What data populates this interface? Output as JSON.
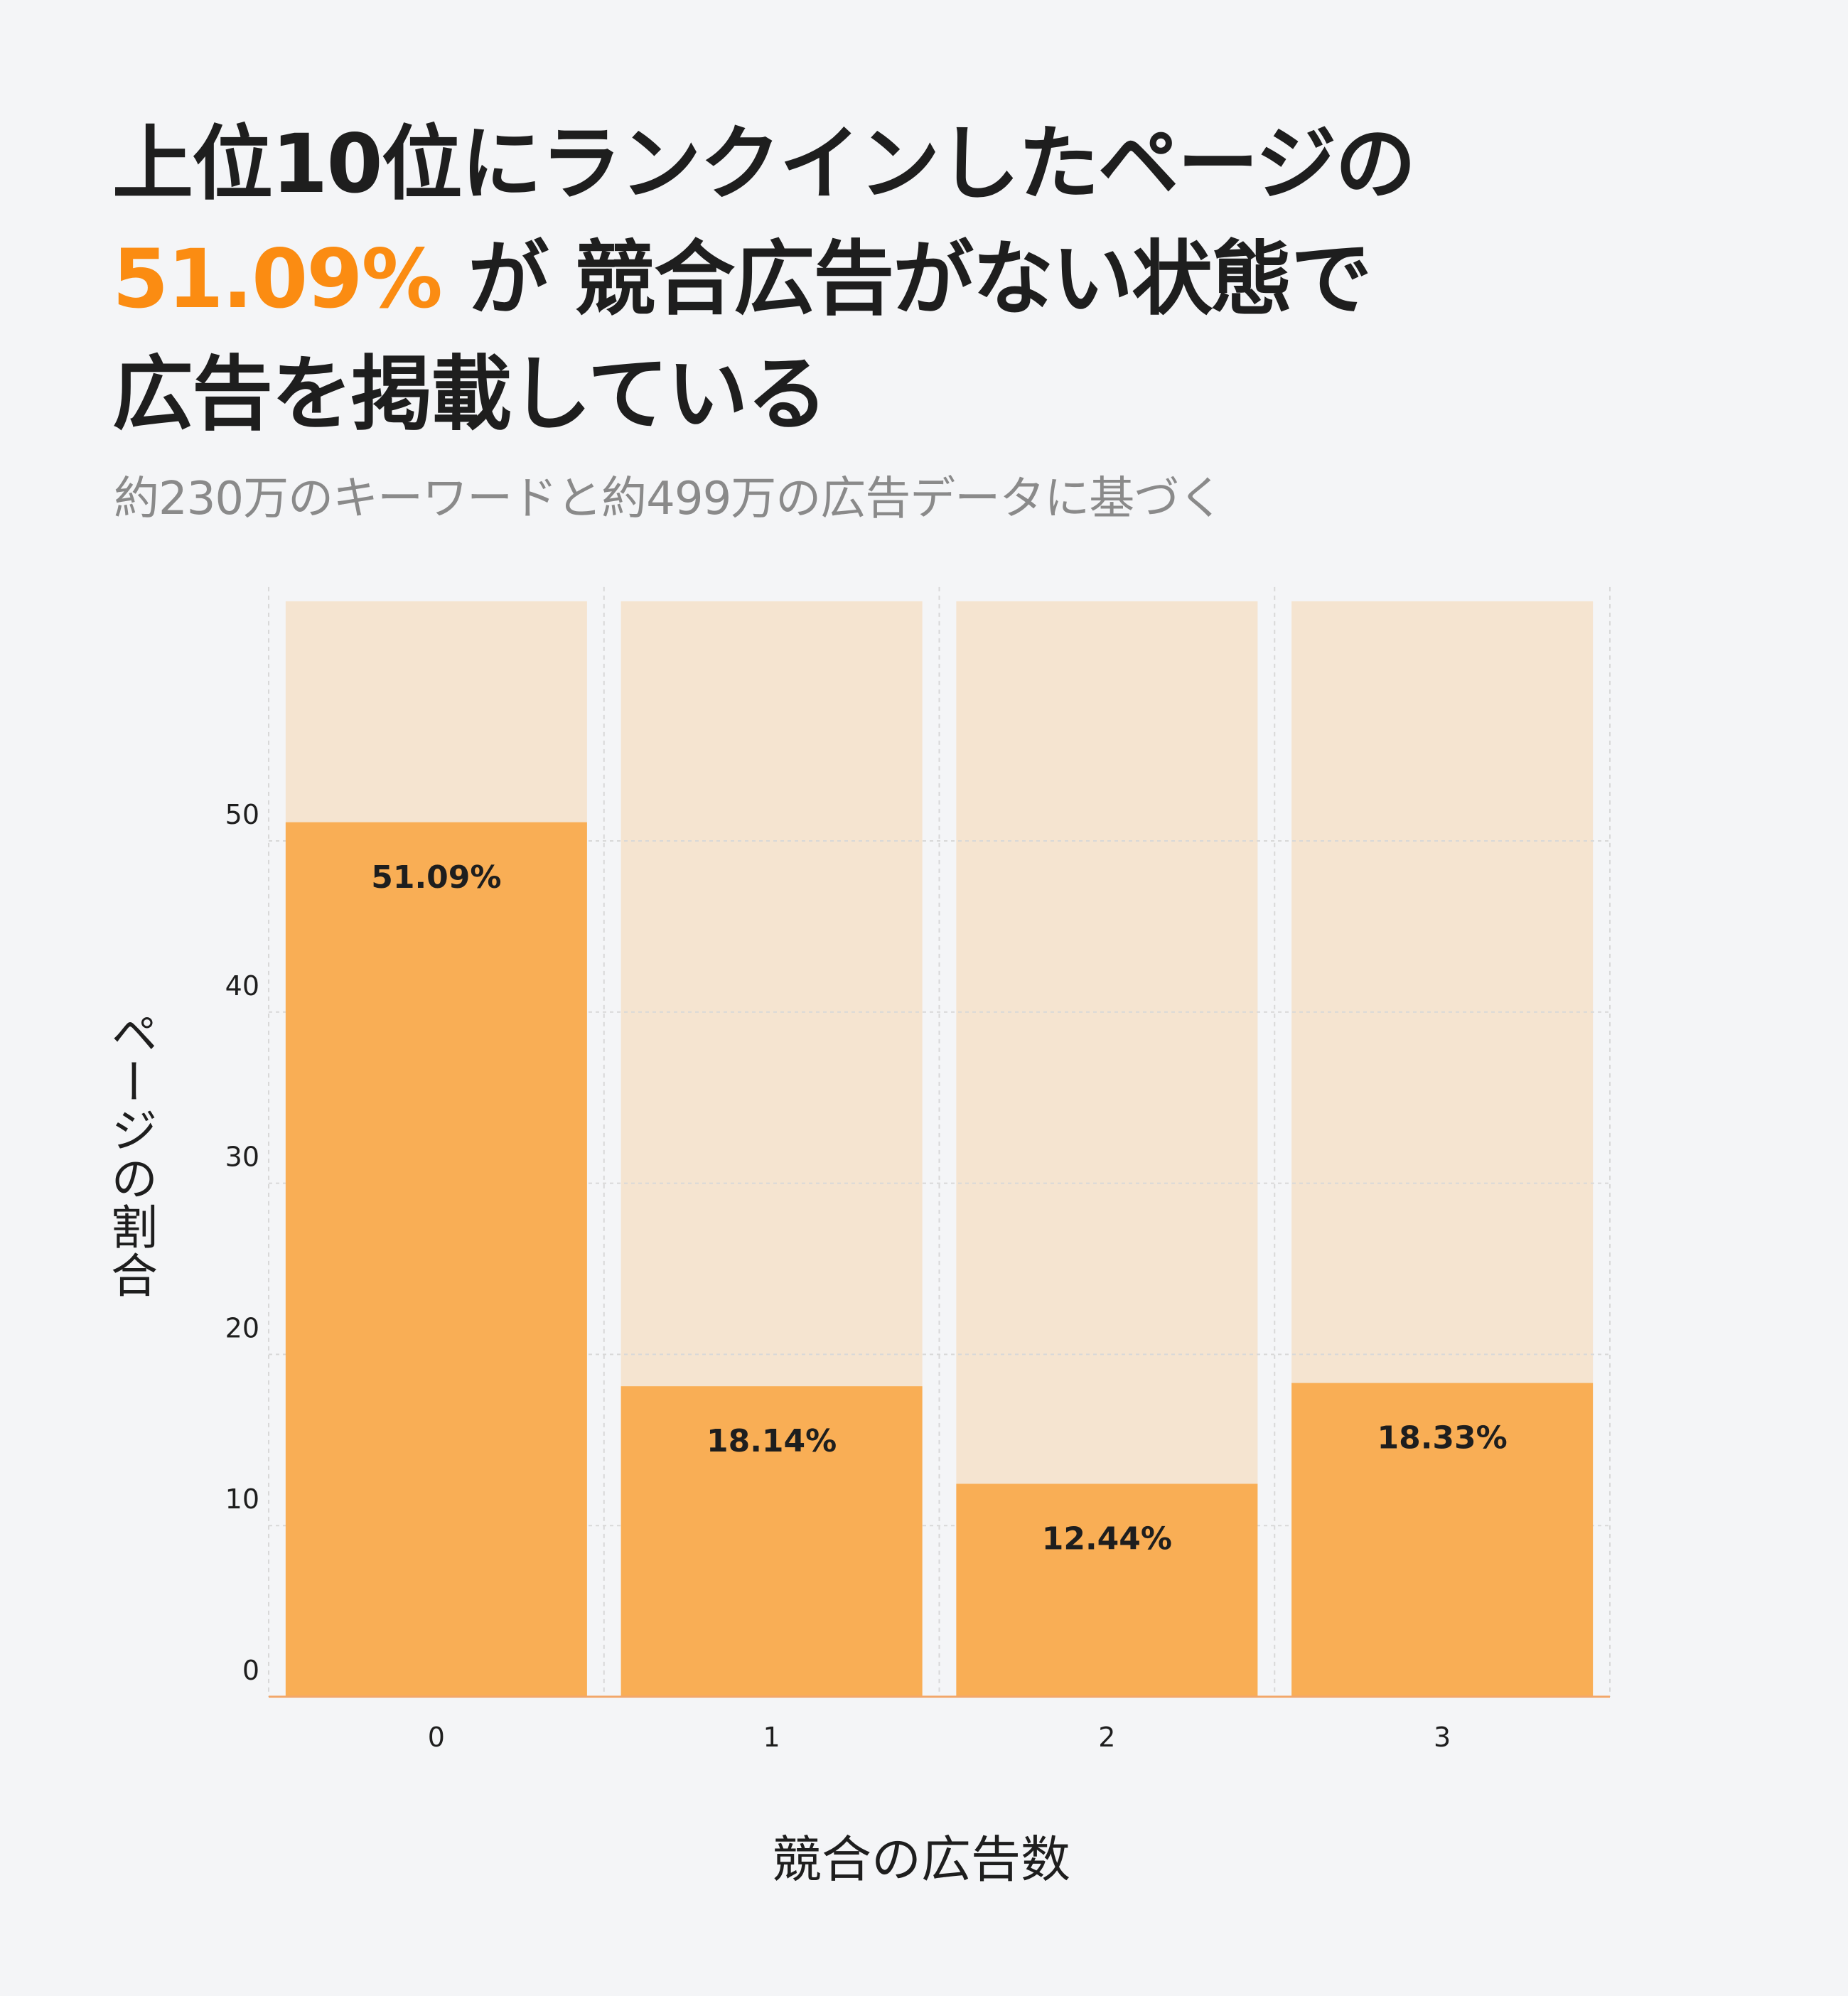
{
  "header": {
    "title_line1": "上位10位にランクインしたページの",
    "title_highlight": "51.09%",
    "title_line2_rest": "が 競合広告がない状態で",
    "title_line3": "広告を掲載している",
    "subtitle": "約230万のキーワードと約499万の広告データに基づく"
  },
  "colors": {
    "highlight": "#fb8c12",
    "bar": "#f9ae55",
    "bar_background": "#f5e4d0",
    "background": "#f4f5f7"
  },
  "chart_data": {
    "type": "bar",
    "xlabel": "競合の広告数",
    "ylabel": "ページの割合",
    "categories": [
      "0",
      "1",
      "2",
      "3"
    ],
    "values": [
      51.09,
      18.14,
      12.44,
      18.33
    ],
    "data_labels": [
      "51.09%",
      "18.14%",
      "12.44%",
      "18.33%"
    ],
    "yticks": [
      "0",
      "10",
      "20",
      "30",
      "40",
      "50"
    ],
    "ylim": [
      0,
      64
    ],
    "grid": true
  }
}
